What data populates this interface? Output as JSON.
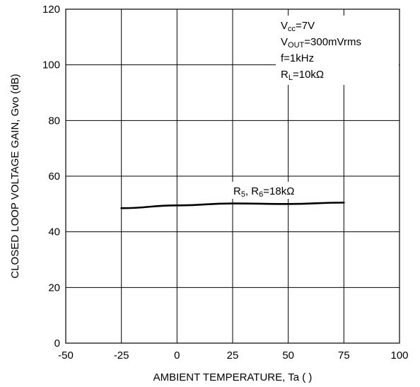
{
  "chart_data": {
    "type": "line",
    "title": "",
    "xlabel": "AMBIENT TEMPERATURE, Ta (   )",
    "ylabel": "CLOSED LOOP VOLTAGE GAIN, Gvo (dB)",
    "xlim": [
      -50,
      100
    ],
    "ylim": [
      0,
      120
    ],
    "xticks": [
      -50,
      -25,
      0,
      25,
      50,
      75,
      100
    ],
    "yticks": [
      0,
      20,
      40,
      60,
      80,
      100,
      120
    ],
    "grid": true,
    "conditions": [
      {
        "main": "V",
        "sub": "cc",
        "rest": "=7V"
      },
      {
        "main": "V",
        "sub": "OUT",
        "rest": "=300mVrms"
      },
      {
        "main": "f=1kHz",
        "sub": "",
        "rest": ""
      },
      {
        "main": "R",
        "sub": "L",
        "rest": "=10kΩ"
      }
    ],
    "series": [
      {
        "label": {
          "p1": "R",
          "s1": "5",
          "p2": ", R",
          "s2": "6",
          "p3": "=18kΩ"
        },
        "x": [
          -25,
          0,
          25,
          50,
          75
        ],
        "y": [
          48.5,
          49.5,
          50.2,
          50.0,
          50.5
        ]
      }
    ]
  }
}
